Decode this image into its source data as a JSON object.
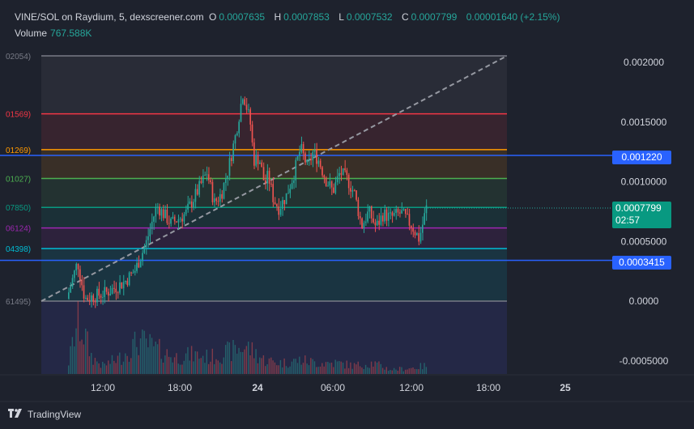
{
  "legend": {
    "symbol": "VINE/SOL on Raydium, 5, dexscreener.com",
    "open_label": "O",
    "open": "0.0007635",
    "high_label": "H",
    "high": "0.0007853",
    "low_label": "L",
    "low": "0.0007532",
    "close_label": "C",
    "close": "0.0007799",
    "change": "0.00001640 (+2.15%)",
    "volume_label": "Volume",
    "volume": "767.588K"
  },
  "badges": {
    "level_upper": "0.001220",
    "price": "0.0007799",
    "countdown": "02:57",
    "level_lower": "0.0003415"
  },
  "footer": {
    "logo_icon": "tradingview-logo-icon",
    "brand": "TradingView"
  },
  "colors": {
    "background": "#1e222d",
    "up": "#26a69a",
    "down": "#ef5350",
    "hline": "#2962ff",
    "text": "#d1d4dc"
  },
  "chart_data": {
    "type": "candlestick",
    "symbol": "VINE/SOL",
    "timeframe": "5",
    "y_ticks": [
      "0.002000",
      "0.0015000",
      "0.0010000",
      "0.0005000",
      "0.0000",
      "-0.0005000"
    ],
    "y_tick_values": [
      0.002,
      0.0015,
      0.001,
      0.0005,
      0,
      -0.0005
    ],
    "ylim": [
      -0.00055,
      0.00225
    ],
    "x_ticks": [
      "12:00",
      "18:00",
      "24",
      "06:00",
      "12:00",
      "18:00",
      "25"
    ],
    "fib_levels": [
      {
        "label": "02054)",
        "value": 0.002054,
        "color": "#787b86"
      },
      {
        "label": "01569)",
        "value": 0.001569,
        "color": "#f23645"
      },
      {
        "label": "01269)",
        "value": 0.001269,
        "color": "#ff9800"
      },
      {
        "label": "01027)",
        "value": 0.001027,
        "color": "#4caf50"
      },
      {
        "label": "07850)",
        "value": 0.000785,
        "color": "#089981"
      },
      {
        "label": "06124)",
        "value": 0.0006124,
        "color": "#9c27b0"
      },
      {
        "label": "04398)",
        "value": 0.0004398,
        "color": "#00bcd4"
      },
      {
        "label": "61495)",
        "value": 0.0,
        "color": "#787b86"
      }
    ],
    "horizontal_lines": [
      0.00122,
      0.0003415
    ],
    "last_price": 0.0007799,
    "price_path": [
      [
        0,
        2e-05
      ],
      [
        0.03,
        0.00033
      ],
      [
        0.05,
        2e-05
      ],
      [
        0.11,
        7e-05
      ],
      [
        0.16,
        0.00016
      ],
      [
        0.19,
        0.00026
      ],
      [
        0.22,
        0.00048
      ],
      [
        0.25,
        0.0008
      ],
      [
        0.29,
        0.00065
      ],
      [
        0.33,
        0.00073
      ],
      [
        0.36,
        0.0009
      ],
      [
        0.39,
        0.00108
      ],
      [
        0.41,
        0.00082
      ],
      [
        0.43,
        0.0009
      ],
      [
        0.45,
        0.00112
      ],
      [
        0.47,
        0.0014
      ],
      [
        0.49,
        0.00175
      ],
      [
        0.51,
        0.0015
      ],
      [
        0.52,
        0.00118
      ],
      [
        0.535,
        0.0012
      ],
      [
        0.55,
        0.00098
      ],
      [
        0.56,
        0.00105
      ],
      [
        0.575,
        0.00085
      ],
      [
        0.59,
        0.00078
      ],
      [
        0.61,
        0.00088
      ],
      [
        0.63,
        0.00105
      ],
      [
        0.65,
        0.00128
      ],
      [
        0.67,
        0.00112
      ],
      [
        0.685,
        0.00125
      ],
      [
        0.7,
        0.00118
      ],
      [
        0.72,
        0.00102
      ],
      [
        0.74,
        0.00092
      ],
      [
        0.76,
        0.00108
      ],
      [
        0.78,
        0.00102
      ],
      [
        0.8,
        0.0009
      ],
      [
        0.82,
        0.00063
      ],
      [
        0.84,
        0.00075
      ],
      [
        0.86,
        0.00062
      ],
      [
        0.88,
        0.00073
      ],
      [
        0.9,
        0.0007
      ],
      [
        0.93,
        0.00074
      ],
      [
        0.96,
        0.00063
      ],
      [
        0.98,
        0.00052
      ],
      [
        1.0,
        0.00078
      ]
    ],
    "volume_path": [
      [
        0,
        0.05
      ],
      [
        0.03,
        0.95
      ],
      [
        0.05,
        0.7
      ],
      [
        0.07,
        0.3
      ],
      [
        0.1,
        0.15
      ],
      [
        0.15,
        0.3
      ],
      [
        0.2,
        0.6
      ],
      [
        0.22,
        0.55
      ],
      [
        0.25,
        0.45
      ],
      [
        0.3,
        0.3
      ],
      [
        0.35,
        0.35
      ],
      [
        0.4,
        0.3
      ],
      [
        0.45,
        0.4
      ],
      [
        0.5,
        0.5
      ],
      [
        0.55,
        0.25
      ],
      [
        0.6,
        0.2
      ],
      [
        0.65,
        0.25
      ],
      [
        0.7,
        0.2
      ],
      [
        0.75,
        0.2
      ],
      [
        0.8,
        0.15
      ],
      [
        0.85,
        0.2
      ],
      [
        0.9,
        0.08
      ],
      [
        0.95,
        0.1
      ],
      [
        1.0,
        0.15
      ]
    ]
  }
}
